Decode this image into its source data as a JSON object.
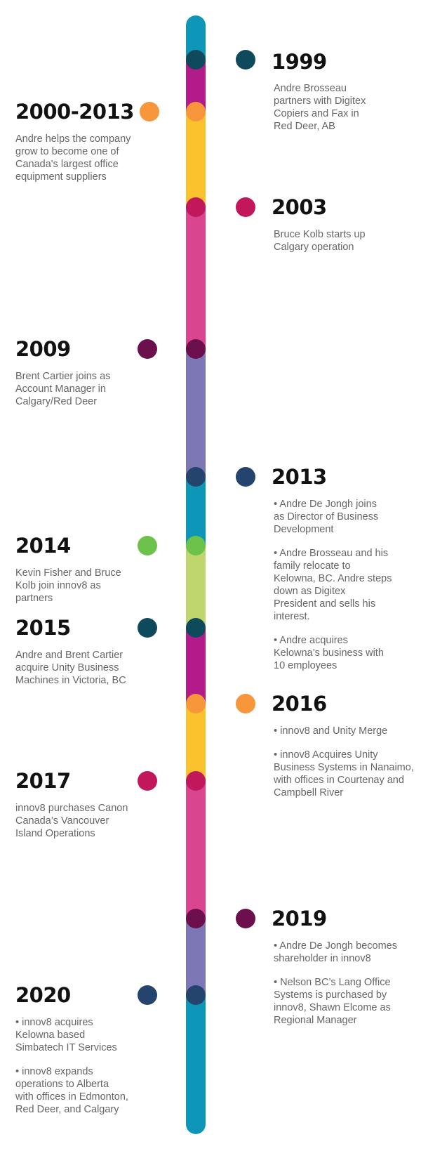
{
  "colors": {
    "teal": "#0e96b8",
    "dark_teal": "#0e4a5c",
    "magenta": "#b31a8a",
    "orange": "#f8963b",
    "yellow": "#fcc22e",
    "crimson": "#c2185b",
    "pink": "#d9458f",
    "plum": "#6b0f4d",
    "lavender": "#7d78b5",
    "navy": "#24446e",
    "green": "#6cc24a",
    "lime": "#bfd56d"
  },
  "events": [
    {
      "year": "1999",
      "paragraphs": [
        "Andre Brosseau\npartners with Digitex\nCopiers and Fax in\nRed Deer, AB"
      ]
    },
    {
      "year": "2000-2013",
      "paragraphs": [
        "Andre helps the company\ngrow to become one of\nCanada's largest office\nequipment suppliers"
      ]
    },
    {
      "year": "2003",
      "paragraphs": [
        "Bruce Kolb starts up\nCalgary operation"
      ]
    },
    {
      "year": "2009",
      "paragraphs": [
        "Brent Cartier joins as\nAccount Manager in\nCalgary/Red Deer"
      ]
    },
    {
      "year": "2013",
      "paragraphs": [
        "• Andre De Jongh joins\nas Director of Business\nDevelopment",
        "• Andre Brosseau and his\nfamily relocate to\nKelowna, BC. Andre steps\ndown as Digitex\nPresident and sells his\ninterest.",
        "• Andre acquires\nKelowna’s business with\n10 employees"
      ]
    },
    {
      "year": "2014",
      "paragraphs": [
        "Kevin Fisher and Bruce\nKolb join innov8 as\npartners"
      ]
    },
    {
      "year": "2015",
      "paragraphs": [
        "Andre and Brent Cartier\nacquire Unity Business\nMachines in Victoria, BC"
      ]
    },
    {
      "year": "2016",
      "paragraphs": [
        "• innov8 and Unity Merge",
        "• innov8 Acquires Unity\nBusiness Systems in Nanaimo,\nwith offices in Courtenay and\nCampbell River"
      ]
    },
    {
      "year": "2017",
      "paragraphs": [
        "innov8 purchases Canon\nCanada’s Vancouver\nIsland Operations"
      ]
    },
    {
      "year": "2019",
      "paragraphs": [
        "• Andre De Jongh becomes\nshareholder in innov8",
        "• Nelson BC’s Lang Office\nSystems is purchased by\ninnov8, Shawn Elcome as\nRegional Manager"
      ]
    },
    {
      "year": "2020",
      "paragraphs": [
        "• innov8 acquires\nKelowna based\nSimbatech IT Services",
        "• innov8 expands\noperations to Alberta\nwith offices in Edmonton,\nRed Deer, and Calgary"
      ]
    }
  ]
}
